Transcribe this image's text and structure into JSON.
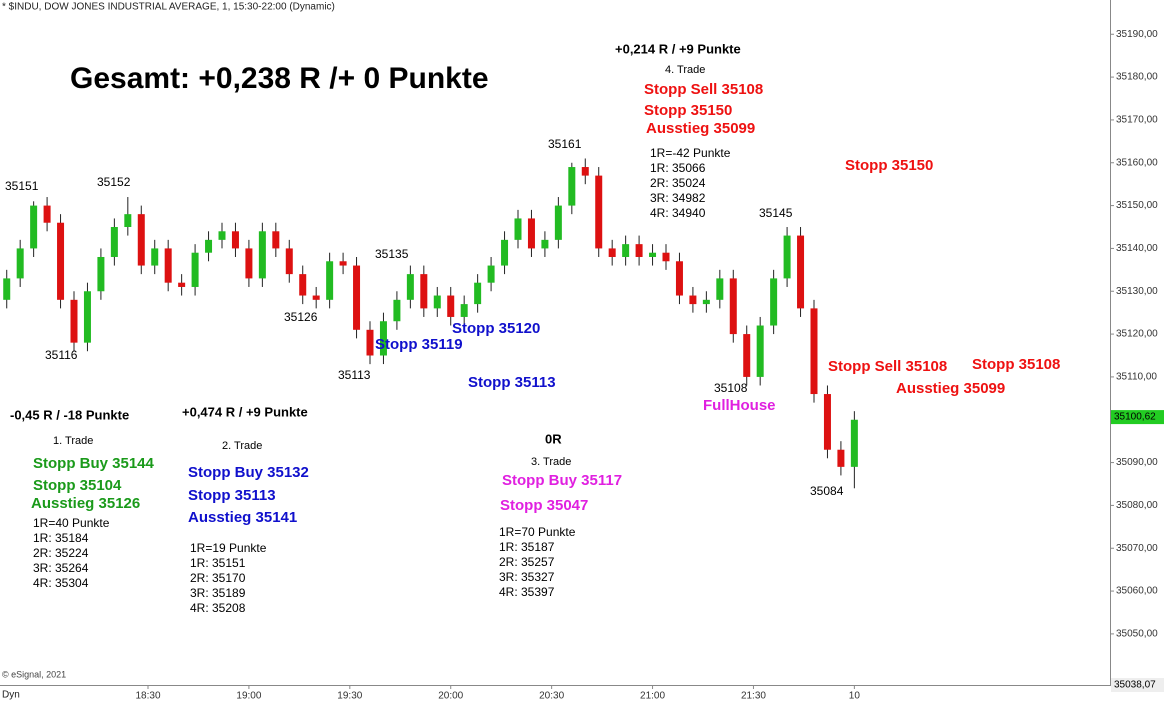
{
  "chart_data": {
    "type": "candlestick",
    "header": "* $INDU, DOW JONES INDUSTRIAL AVERAGE, 1, 15:30-22:00 (Dynamic)",
    "footer": "© eSignal, 2021",
    "mode_label": "Dyn",
    "up_color": "#22bb22",
    "down_color": "#dd1111",
    "xlim": [
      1066,
      1396
    ],
    "xticks": [
      {
        "value": 1110,
        "label": "18:30"
      },
      {
        "value": 1140,
        "label": "19:00"
      },
      {
        "value": 1170,
        "label": "19:30"
      },
      {
        "value": 1200,
        "label": "20:00"
      },
      {
        "value": 1230,
        "label": "20:30"
      },
      {
        "value": 1260,
        "label": "21:00"
      },
      {
        "value": 1290,
        "label": "21:30"
      },
      {
        "value": 1320,
        "label": "10"
      }
    ],
    "ylim": [
      35038.07,
      35198
    ],
    "yticks": [
      {
        "value": 35050,
        "label": "35050,00"
      },
      {
        "value": 35060,
        "label": "35060,00"
      },
      {
        "value": 35070,
        "label": "35070,00"
      },
      {
        "value": 35080,
        "label": "35080,00"
      },
      {
        "value": 35090,
        "label": "35090,00"
      },
      {
        "value": 35110,
        "label": "35110,00"
      },
      {
        "value": 35120,
        "label": "35120,00"
      },
      {
        "value": 35130,
        "label": "35130,00"
      },
      {
        "value": 35140,
        "label": "35140,00"
      },
      {
        "value": 35150,
        "label": "35150,00"
      },
      {
        "value": 35160,
        "label": "35160,00"
      },
      {
        "value": 35170,
        "label": "35170,00"
      },
      {
        "value": 35180,
        "label": "35180,00"
      },
      {
        "value": 35190,
        "label": "35190,00"
      }
    ],
    "last_price": {
      "value": 35100.62,
      "label": "35100,62"
    },
    "bottom_price": {
      "value": 35038.07,
      "label": "35038,07"
    },
    "x": [
      1068,
      1072,
      1076,
      1080,
      1084,
      1088,
      1092,
      1096,
      1100,
      1104,
      1108,
      1112,
      1116,
      1120,
      1124,
      1128,
      1132,
      1136,
      1140,
      1144,
      1148,
      1152,
      1156,
      1160,
      1164,
      1168,
      1172,
      1176,
      1180,
      1184,
      1188,
      1192,
      1196,
      1200,
      1204,
      1208,
      1212,
      1216,
      1220,
      1224,
      1228,
      1232,
      1236,
      1240,
      1244,
      1248,
      1252,
      1256,
      1260,
      1264,
      1268,
      1272,
      1276,
      1280,
      1284,
      1288,
      1292,
      1296,
      1300,
      1304,
      1308,
      1312,
      1316,
      1320
    ],
    "open": [
      35128,
      35133,
      35140,
      35150,
      35146,
      35128,
      35118,
      35130,
      35138,
      35145,
      35148,
      35136,
      35140,
      35132,
      35131,
      35139,
      35142,
      35144,
      35140,
      35133,
      35144,
      35140,
      35134,
      35129,
      35128,
      35137,
      35136,
      35121,
      35115,
      35123,
      35128,
      35134,
      35126,
      35129,
      35124,
      35127,
      35132,
      35136,
      35142,
      35147,
      35140,
      35142,
      35150,
      35159,
      35157,
      35140,
      35138,
      35141,
      35138,
      35139,
      35137,
      35129,
      35127,
      35128,
      35133,
      35120,
      35110,
      35122,
      35133,
      35143,
      35126,
      35106,
      35093,
      35089
    ],
    "high": [
      35135,
      35142,
      35151,
      35152,
      35148,
      35130,
      35132,
      35140,
      35147,
      35152,
      35150,
      35142,
      35142,
      35134,
      35141,
      35144,
      35146,
      35146,
      35142,
      35146,
      35146,
      35142,
      35136,
      35131,
      35139,
      35139,
      35138,
      35123,
      35125,
      35130,
      35136,
      35136,
      35131,
      35131,
      35129,
      35134,
      35138,
      35144,
      35149,
      35149,
      35144,
      35152,
      35160,
      35161,
      35159,
      35142,
      35143,
      35143,
      35141,
      35141,
      35139,
      35131,
      35130,
      35135,
      35135,
      35122,
      35124,
      35135,
      35145,
      35145,
      35128,
      35108,
      35095,
      35102
    ],
    "low": [
      35126,
      35131,
      35138,
      35144,
      35126,
      35116,
      35116,
      35128,
      35136,
      35143,
      35134,
      35134,
      35130,
      35129,
      35129,
      35137,
      35140,
      35138,
      35131,
      35131,
      35138,
      35132,
      35127,
      35126,
      35126,
      35134,
      35119,
      35113,
      35113,
      35121,
      35126,
      35124,
      35124,
      35122,
      35122,
      35125,
      35130,
      35134,
      35140,
      35138,
      35138,
      35140,
      35148,
      35155,
      35138,
      35136,
      35136,
      35136,
      35136,
      35135,
      35127,
      35125,
      35125,
      35126,
      35118,
      35108,
      35108,
      35120,
      35131,
      35124,
      35104,
      35091,
      35087,
      35084
    ],
    "close": [
      35133,
      35140,
      35150,
      35146,
      35128,
      35118,
      35130,
      35138,
      35145,
      35148,
      35136,
      35140,
      35132,
      35131,
      35139,
      35142,
      35144,
      35140,
      35133,
      35144,
      35140,
      35134,
      35129,
      35128,
      35137,
      35136,
      35121,
      35115,
      35123,
      35128,
      35134,
      35126,
      35129,
      35124,
      35127,
      35132,
      35136,
      35142,
      35147,
      35140,
      35142,
      35150,
      35159,
      35157,
      35140,
      35138,
      35141,
      35138,
      35139,
      35137,
      35129,
      35127,
      35128,
      35133,
      35120,
      35110,
      35122,
      35133,
      35143,
      35126,
      35106,
      35093,
      35089,
      35100
    ],
    "annotations": [
      {
        "text": "Gesamt: +0,238 R /+ 0 Punkte",
        "color": "#000000"
      },
      {
        "text": "+0,214 R / +9 Punkte",
        "color": "#000000"
      },
      {
        "text": "4. Trade",
        "color": "#000000"
      },
      {
        "text": "Stopp Sell 35108",
        "color": "#ee1111"
      },
      {
        "text": "Stopp 35150",
        "color": "#ee1111"
      },
      {
        "text": "Ausstieg 35099",
        "color": "#ee1111"
      },
      {
        "text": "1R=-42 Punkte",
        "color": "#000000"
      },
      {
        "text": "1R: 35066",
        "color": "#000000"
      },
      {
        "text": "2R: 35024",
        "color": "#000000"
      },
      {
        "text": "3R: 34982",
        "color": "#000000"
      },
      {
        "text": "4R: 34940",
        "color": "#000000"
      },
      {
        "text": "Stopp 35150",
        "color": "#ee1111"
      },
      {
        "text": "Stopp Sell 35108",
        "color": "#ee1111"
      },
      {
        "text": "Stopp 35108",
        "color": "#ee1111"
      },
      {
        "text": "Ausstieg 35099",
        "color": "#ee1111"
      },
      {
        "text": "FullHouse",
        "color": "#e020e0"
      },
      {
        "text": "Stopp 35120",
        "color": "#1010cc"
      },
      {
        "text": "Stopp 35119",
        "color": "#1010cc"
      },
      {
        "text": "Stopp 35113",
        "color": "#1010cc"
      },
      {
        "text": "-0,45 R / -18 Punkte",
        "color": "#000000"
      },
      {
        "text": "1. Trade",
        "color": "#000000"
      },
      {
        "text": "Stopp Buy 35144",
        "color": "#1a9a1a"
      },
      {
        "text": "Stopp 35104",
        "color": "#1a9a1a"
      },
      {
        "text": "Ausstieg 35126",
        "color": "#1a9a1a"
      },
      {
        "text": "1R=40 Punkte",
        "color": "#000000"
      },
      {
        "text": "1R: 35184",
        "color": "#000000"
      },
      {
        "text": "2R: 35224",
        "color": "#000000"
      },
      {
        "text": "3R: 35264",
        "color": "#000000"
      },
      {
        "text": "4R: 35304",
        "color": "#000000"
      },
      {
        "text": "+0,474 R / +9 Punkte",
        "color": "#000000"
      },
      {
        "text": "2. Trade",
        "color": "#000000"
      },
      {
        "text": "Stopp Buy 35132",
        "color": "#1010cc"
      },
      {
        "text": "Stopp 35113",
        "color": "#1010cc"
      },
      {
        "text": "Ausstieg 35141",
        "color": "#1010cc"
      },
      {
        "text": "1R=19 Punkte",
        "color": "#000000"
      },
      {
        "text": "1R: 35151",
        "color": "#000000"
      },
      {
        "text": "2R: 35170",
        "color": "#000000"
      },
      {
        "text": "3R: 35189",
        "color": "#000000"
      },
      {
        "text": "4R: 35208",
        "color": "#000000"
      },
      {
        "text": "0R",
        "color": "#000000"
      },
      {
        "text": "3. Trade",
        "color": "#000000"
      },
      {
        "text": "Stopp Buy 35117",
        "color": "#e020e0"
      },
      {
        "text": "Stopp 35047",
        "color": "#e020e0"
      },
      {
        "text": "1R=70 Punkte",
        "color": "#000000"
      },
      {
        "text": "1R: 35187",
        "color": "#000000"
      },
      {
        "text": "2R: 35257",
        "color": "#000000"
      },
      {
        "text": "3R: 35327",
        "color": "#000000"
      },
      {
        "text": "4R: 35397",
        "color": "#000000"
      },
      {
        "text": "35151",
        "color": "#000000"
      },
      {
        "text": "35152",
        "color": "#000000"
      },
      {
        "text": "35116",
        "color": "#000000"
      },
      {
        "text": "35126",
        "color": "#000000"
      },
      {
        "text": "35135",
        "color": "#000000"
      },
      {
        "text": "35113",
        "color": "#000000"
      },
      {
        "text": "35161",
        "color": "#000000"
      },
      {
        "text": "35145",
        "color": "#000000"
      },
      {
        "text": "35108",
        "color": "#000000"
      },
      {
        "text": "35084",
        "color": "#000000"
      }
    ]
  }
}
